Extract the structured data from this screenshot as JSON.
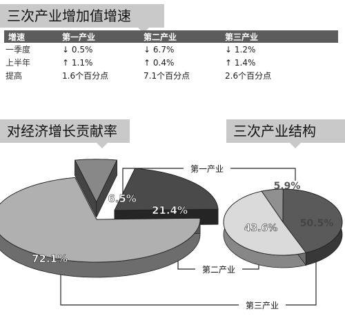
{
  "titles": {
    "growth": "三次产业增加值增速",
    "contribution": "对经济增长贡献率",
    "structure": "三次产业结构"
  },
  "growth_table": {
    "headers": [
      "增速",
      "第一产业",
      "第二产业",
      "第三产业"
    ],
    "rows": [
      {
        "label": "一季度",
        "cells": [
          "↓ 0.5%",
          "↓ 6.7%",
          "↓ 1.2%"
        ]
      },
      {
        "label": "上半年",
        "cells": [
          "↑ 1.1%",
          "↑ 0.4%",
          "↑ 1.4%"
        ]
      },
      {
        "label": "提高",
        "cells": [
          "1.6个百分点",
          "7.1个百分点",
          "2.6个百分点"
        ]
      }
    ]
  },
  "chart_data": [
    {
      "type": "pie",
      "title": "对经济增长贡献率",
      "categories": [
        "第一产业",
        "第二产业",
        "第三产业"
      ],
      "values": [
        6.5,
        21.4,
        72.1
      ],
      "labels": [
        "6.5%",
        "21.4%",
        "72.1%"
      ],
      "colors": [
        "#888888",
        "#4a4a4a",
        "#b0b0b0"
      ]
    },
    {
      "type": "pie",
      "title": "三次产业结构",
      "categories": [
        "第一产业",
        "第二产业",
        "第三产业"
      ],
      "values": [
        5.9,
        43.6,
        50.5
      ],
      "labels": [
        "5.9%",
        "43.6%",
        "50.5%"
      ],
      "colors": [
        "#909090",
        "#5a5a5a",
        "#dadada"
      ]
    }
  ],
  "callouts": {
    "primary": "第一产业",
    "secondary": "第二产业",
    "tertiary": "第三产业"
  }
}
